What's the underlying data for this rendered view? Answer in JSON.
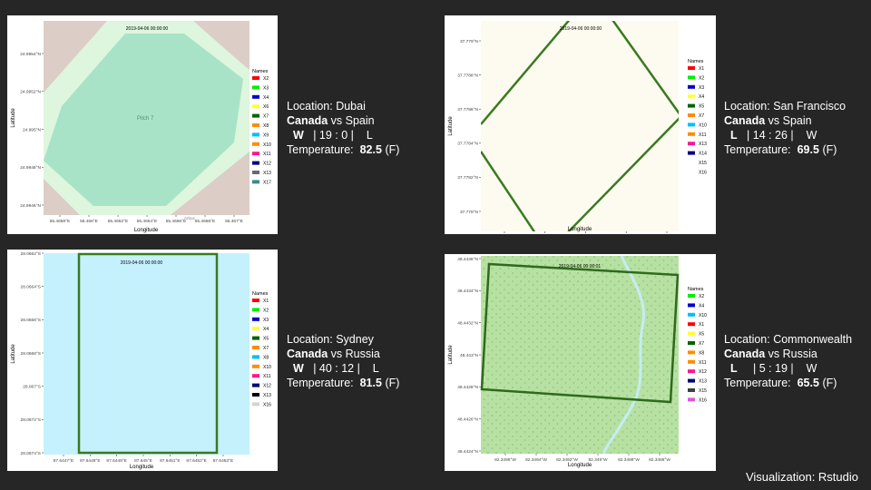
{
  "chart_data": [
    {
      "type": "map",
      "timestamp": "2019-04-06 00:00:00",
      "xlabel": "Longitude",
      "ylabel": "Latitude",
      "x_ticks": [
        "55.4658°E",
        "55.466°E",
        "55.4662°E",
        "55.4664°E",
        "55.4666°E",
        "55.4668°E",
        "55.467°E"
      ],
      "y_ticks": [
        "24.9954°N",
        "24.9952°N",
        "24.995°N",
        "24.9948°N",
        "24.9946°N"
      ],
      "legend_title": "Names",
      "legend": [
        {
          "name": "X2",
          "color": "#ff0000"
        },
        {
          "name": "X3",
          "color": "#00ee00"
        },
        {
          "name": "X4",
          "color": "#0000cc"
        },
        {
          "name": "X6",
          "color": "#ffff33"
        },
        {
          "name": "X7",
          "color": "#006400"
        },
        {
          "name": "X8",
          "color": "#ff8c00"
        },
        {
          "name": "X9",
          "color": "#00bfff"
        },
        {
          "name": "X10",
          "color": "#ff8c00"
        },
        {
          "name": "X11",
          "color": "#ff1493"
        },
        {
          "name": "X12",
          "color": "#000080"
        },
        {
          "name": "X13",
          "color": "#696969"
        },
        {
          "name": "X17",
          "color": "#3c8c8c"
        }
      ],
      "map_labels": [
        "Pitch 7",
        "Arbus"
      ]
    },
    {
      "type": "map",
      "timestamp": "2019-04-06 00:00:00",
      "xlabel": "Longitude",
      "ylabel": "Latitude",
      "x_ticks": [
        "81.5932°W",
        "81.593°W",
        "81.5928°W",
        "81.5926°W",
        "81.5924°W"
      ],
      "y_ticks": [
        "37.779°N",
        "37.7788°N",
        "37.7786°N",
        "37.7784°N",
        "37.7782°N",
        "37.778°N"
      ],
      "legend_title": "Names",
      "legend": [
        {
          "name": "X1",
          "color": "#ff0000"
        },
        {
          "name": "X2",
          "color": "#00ee00"
        },
        {
          "name": "X3",
          "color": "#0000cc"
        },
        {
          "name": "X4",
          "color": "#ffff33"
        },
        {
          "name": "X5",
          "color": "#006400"
        },
        {
          "name": "X7",
          "color": "#ff8c00"
        },
        {
          "name": "X10",
          "color": "#00bfff"
        },
        {
          "name": "X11",
          "color": "#ff8c00"
        },
        {
          "name": "X13",
          "color": "#ff1493"
        },
        {
          "name": "X14",
          "color": "#000080"
        },
        {
          "name": "X15",
          "color": "#ffffff"
        },
        {
          "name": "X16",
          "color": "#ffffff"
        }
      ],
      "map_labels": []
    },
    {
      "type": "map",
      "timestamp": "2019-04-06 00:00:00",
      "xlabel": "Longitude",
      "ylabel": "Latitude",
      "x_ticks": [
        "87.6447°E",
        "87.6448°E",
        "87.6449°E",
        "87.645°E",
        "87.6451°E",
        "87.6452°E",
        "87.6453°E"
      ],
      "y_ticks": [
        "28.0662°S",
        "28.0664°S",
        "28.0666°S",
        "28.0668°S",
        "28.067°S",
        "28.0672°S",
        "28.0674°S"
      ],
      "legend_title": "Names",
      "legend": [
        {
          "name": "X1",
          "color": "#ff0000"
        },
        {
          "name": "X2",
          "color": "#00ee00"
        },
        {
          "name": "X3",
          "color": "#0000cc"
        },
        {
          "name": "X4",
          "color": "#ffff33"
        },
        {
          "name": "X5",
          "color": "#006400"
        },
        {
          "name": "X7",
          "color": "#ff8c00"
        },
        {
          "name": "X8",
          "color": "#00bfff"
        },
        {
          "name": "X10",
          "color": "#ff8c00"
        },
        {
          "name": "X11",
          "color": "#ff1493"
        },
        {
          "name": "X12",
          "color": "#000080"
        },
        {
          "name": "X13",
          "color": "#000000"
        },
        {
          "name": "X16",
          "color": "#d3d3d3"
        }
      ],
      "map_labels": []
    },
    {
      "type": "map",
      "timestamp": "2019-04-06 00:00:01",
      "xlabel": "Longitude",
      "ylabel": "Latitude",
      "x_ticks": [
        "82.3496°W",
        "82.3494°W",
        "82.3492°W",
        "82.349°W",
        "82.3488°W",
        "82.3486°W"
      ],
      "y_ticks": [
        "48.4436°N",
        "48.4434°N",
        "48.4432°N",
        "48.443°N",
        "48.4428°N",
        "48.4426°N",
        "48.4424°N"
      ],
      "legend_title": "Names",
      "legend": [
        {
          "name": "X2",
          "color": "#00ee00"
        },
        {
          "name": "X4",
          "color": "#0000cc"
        },
        {
          "name": "X10",
          "color": "#00bfff"
        },
        {
          "name": "X1",
          "color": "#ff0000"
        },
        {
          "name": "X5",
          "color": "#ffff33"
        },
        {
          "name": "X7",
          "color": "#006400"
        },
        {
          "name": "X8",
          "color": "#ff8c00"
        },
        {
          "name": "X11",
          "color": "#ff8c00"
        },
        {
          "name": "X12",
          "color": "#ff1493"
        },
        {
          "name": "X13",
          "color": "#000080"
        },
        {
          "name": "X15",
          "color": "#404040"
        },
        {
          "name": "X16",
          "color": "#dd55dd"
        }
      ],
      "map_labels": []
    }
  ],
  "matches": [
    {
      "location": "Location: Dubai",
      "team_a": "Canada",
      "vs": "vs",
      "team_b": "Spain",
      "result_a": "W",
      "score": "| 19 : 0 |",
      "result_b": "L",
      "temp_label": "Temperature:",
      "temp_value": "82.5",
      "temp_unit": "(F)"
    },
    {
      "location": "Location: San Francisco",
      "team_a": "Canada",
      "vs": "vs",
      "team_b": "Spain",
      "result_a": "L",
      "score": "| 14 : 26 |",
      "result_b": "W",
      "temp_label": "Temperature:",
      "temp_value": "69.5",
      "temp_unit": "(F)"
    },
    {
      "location": "Location: Sydney",
      "team_a": "Canada",
      "vs": "vs",
      "team_b": "Russia",
      "result_a": "W",
      "score": "| 40 : 12 |",
      "result_b": "L",
      "temp_label": "Temperature:",
      "temp_value": "81.5",
      "temp_unit": "(F)"
    },
    {
      "location": "Location: Commonwealth",
      "team_a": "Canada",
      "vs": "vs",
      "team_b": "Russia",
      "result_a": "L",
      "score": "| 5 : 19 |",
      "result_b": "W",
      "temp_label": "Temperature:",
      "temp_value": "65.5",
      "temp_unit": "(F)"
    }
  ],
  "footer": "Visualization: Rstudio"
}
